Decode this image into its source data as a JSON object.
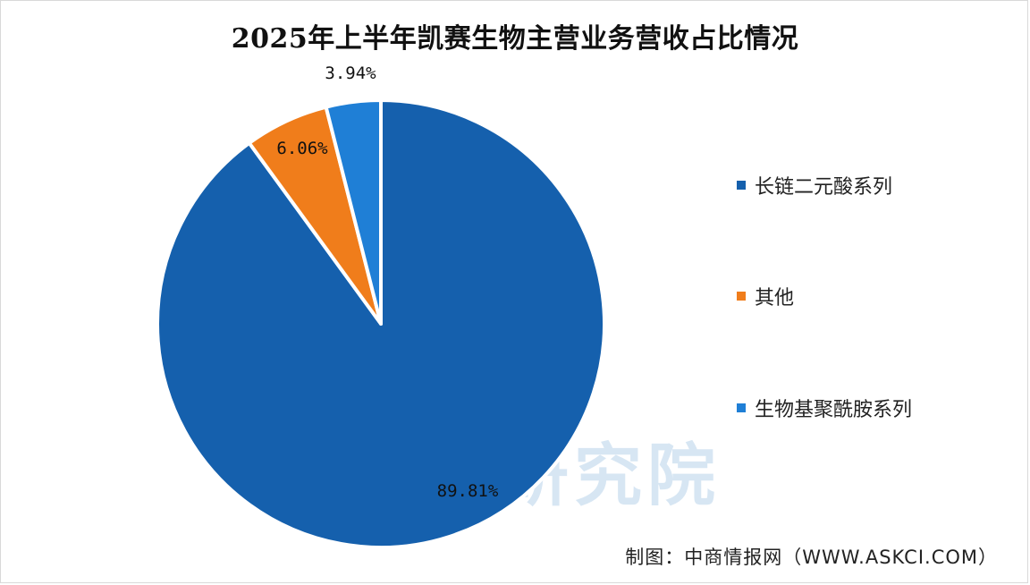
{
  "chart_data": {
    "type": "pie",
    "title": "2025年上半年凯赛生物主营业务营收占比情况",
    "slices": [
      {
        "name": "长链二元酸系列",
        "value": 89.81,
        "label": "89.81%",
        "color": "#1560ad"
      },
      {
        "name": "其他",
        "value": 6.06,
        "label": "6.06%",
        "color": "#f07d1b"
      },
      {
        "name": "生物基聚酰胺系列",
        "value": 3.94,
        "label": "3.94%",
        "color": "#1f7fd6"
      }
    ],
    "legend_position": "right"
  },
  "watermark": "研究院",
  "source": "制图：中商情报网（WWW.ASKCI.COM）"
}
